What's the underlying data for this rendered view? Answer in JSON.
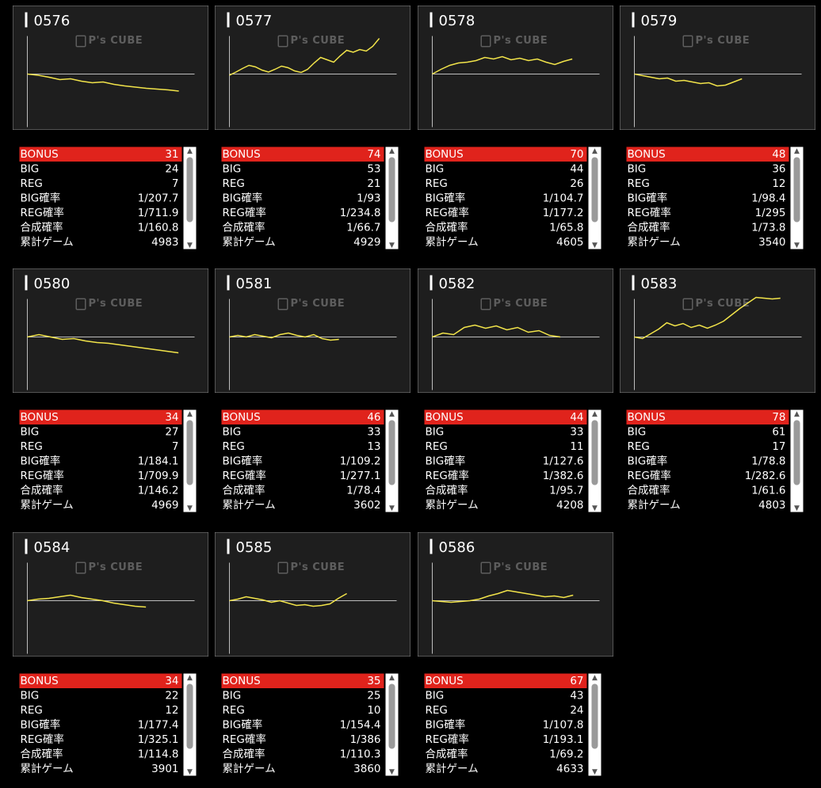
{
  "labels": {
    "bonus": "BONUS",
    "big": "BIG",
    "reg": "REG",
    "big_rate": "BIG確率",
    "reg_rate": "REG確率",
    "total_rate": "合成確率",
    "games": "累計ゲーム"
  },
  "watermark": "P's CUBE",
  "colors": {
    "graph_line": "#f2e44a",
    "bonus_bar": "#e0231c",
    "panel_bg": "#1e1e1e",
    "panel_border": "#8a8a8a"
  },
  "icons": {
    "scroll_up": "▲",
    "scroll_down": "▼"
  },
  "machines": [
    {
      "id": "0576",
      "bonus": "31",
      "big": "24",
      "reg": "7",
      "big_rate": "1/207.7",
      "reg_rate": "1/711.9",
      "total_rate": "1/160.8",
      "games": "4983",
      "trend": [
        0,
        -0.03,
        -0.08,
        -0.14,
        -0.12,
        -0.18,
        -0.22,
        -0.2,
        -0.26,
        -0.3,
        -0.33,
        -0.36,
        -0.38,
        -0.4,
        -0.43
      ]
    },
    {
      "id": "0577",
      "bonus": "74",
      "big": "53",
      "reg": "21",
      "big_rate": "1/93",
      "reg_rate": "1/234.8",
      "total_rate": "1/66.7",
      "games": "4929",
      "trend": [
        -0.03,
        0.05,
        0.14,
        0.22,
        0.18,
        0.1,
        0.05,
        0.12,
        0.2,
        0.16,
        0.08,
        0.04,
        0.12,
        0.28,
        0.42,
        0.36,
        0.3,
        0.46,
        0.6,
        0.55,
        0.62,
        0.58,
        0.7,
        0.9
      ]
    },
    {
      "id": "0578",
      "bonus": "70",
      "big": "44",
      "reg": "26",
      "big_rate": "1/104.7",
      "reg_rate": "1/177.2",
      "total_rate": "1/65.8",
      "games": "4605",
      "trend": [
        0,
        0.12,
        0.22,
        0.28,
        0.3,
        0.34,
        0.42,
        0.38,
        0.44,
        0.36,
        0.4,
        0.34,
        0.38,
        0.3,
        0.24,
        0.32,
        0.38
      ]
    },
    {
      "id": "0579",
      "bonus": "48",
      "big": "36",
      "reg": "12",
      "big_rate": "1/98.4",
      "reg_rate": "1/295",
      "total_rate": "1/73.8",
      "games": "3540",
      "trend": [
        0,
        -0.04,
        -0.08,
        -0.12,
        -0.1,
        -0.18,
        -0.16,
        -0.2,
        -0.24,
        -0.22,
        -0.3,
        -0.28,
        -0.2,
        -0.12
      ]
    },
    {
      "id": "0580",
      "bonus": "34",
      "big": "27",
      "reg": "7",
      "big_rate": "1/184.1",
      "reg_rate": "1/709.9",
      "total_rate": "1/146.2",
      "games": "4969",
      "trend": [
        0,
        0.06,
        0.0,
        -0.06,
        -0.04,
        -0.1,
        -0.14,
        -0.16,
        -0.2,
        -0.24,
        -0.28,
        -0.32,
        -0.36,
        -0.4
      ]
    },
    {
      "id": "0581",
      "bonus": "46",
      "big": "33",
      "reg": "13",
      "big_rate": "1/109.2",
      "reg_rate": "1/277.1",
      "total_rate": "1/78.4",
      "games": "3602",
      "trend": [
        0,
        0.04,
        0.0,
        0.06,
        0.02,
        -0.02,
        0.06,
        0.1,
        0.04,
        0.0,
        0.06,
        -0.04,
        -0.08,
        -0.06
      ]
    },
    {
      "id": "0582",
      "bonus": "44",
      "big": "33",
      "reg": "11",
      "big_rate": "1/127.6",
      "reg_rate": "1/382.6",
      "total_rate": "1/95.7",
      "games": "4208",
      "trend": [
        0,
        0.1,
        0.06,
        0.24,
        0.3,
        0.22,
        0.28,
        0.18,
        0.24,
        0.12,
        0.16,
        0.04,
        0.0
      ]
    },
    {
      "id": "0583",
      "bonus": "78",
      "big": "61",
      "reg": "17",
      "big_rate": "1/78.8",
      "reg_rate": "1/282.6",
      "total_rate": "1/61.6",
      "games": "4803",
      "trend": [
        0,
        -0.04,
        0.08,
        0.2,
        0.36,
        0.28,
        0.34,
        0.24,
        0.3,
        0.22,
        0.3,
        0.4,
        0.56,
        0.72,
        0.86,
        1.0,
        0.98,
        0.96,
        0.98
      ]
    },
    {
      "id": "0584",
      "bonus": "34",
      "big": "22",
      "reg": "12",
      "big_rate": "1/177.4",
      "reg_rate": "1/325.1",
      "total_rate": "1/114.8",
      "games": "3901",
      "trend": [
        0,
        0.04,
        0.06,
        0.1,
        0.14,
        0.08,
        0.04,
        0.0,
        -0.06,
        -0.1,
        -0.14,
        -0.16
      ]
    },
    {
      "id": "0585",
      "bonus": "35",
      "big": "25",
      "reg": "10",
      "big_rate": "1/154.4",
      "reg_rate": "1/386",
      "total_rate": "1/110.3",
      "games": "3860",
      "trend": [
        0,
        0.04,
        0.1,
        0.06,
        0.02,
        -0.04,
        0.0,
        -0.06,
        -0.12,
        -0.1,
        -0.14,
        -0.12,
        -0.08,
        0.06,
        0.18
      ]
    },
    {
      "id": "0586",
      "bonus": "67",
      "big": "43",
      "reg": "24",
      "big_rate": "1/107.8",
      "reg_rate": "1/193.1",
      "total_rate": "1/69.2",
      "games": "4633",
      "trend": [
        0,
        -0.02,
        -0.04,
        -0.02,
        0.0,
        0.04,
        0.12,
        0.18,
        0.26,
        0.22,
        0.18,
        0.14,
        0.1,
        0.12,
        0.08,
        0.14
      ]
    }
  ]
}
